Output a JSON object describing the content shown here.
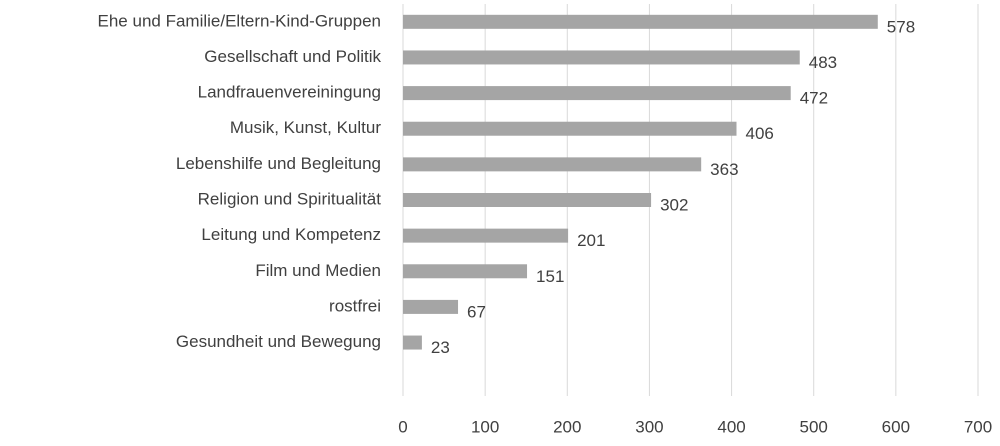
{
  "chart_data": {
    "type": "bar",
    "orientation": "horizontal",
    "categories": [
      "Ehe und Familie/Eltern-Kind-Gruppen",
      "Gesellschaft und Politik",
      "Landfrauenvereiningung",
      "Musik, Kunst, Kultur",
      "Lebenshilfe und Begleitung",
      "Religion und Spiritualität",
      "Leitung und Kompetenz",
      "Film und Medien",
      "rostfrei",
      "Gesundheit und Bewegung"
    ],
    "values": [
      578,
      483,
      472,
      406,
      363,
      302,
      201,
      151,
      67,
      23
    ],
    "color": "#a5a5a5",
    "xlim": [
      0,
      700
    ],
    "xticks": [
      0,
      100,
      200,
      300,
      400,
      500,
      600,
      700
    ],
    "grid": true
  }
}
